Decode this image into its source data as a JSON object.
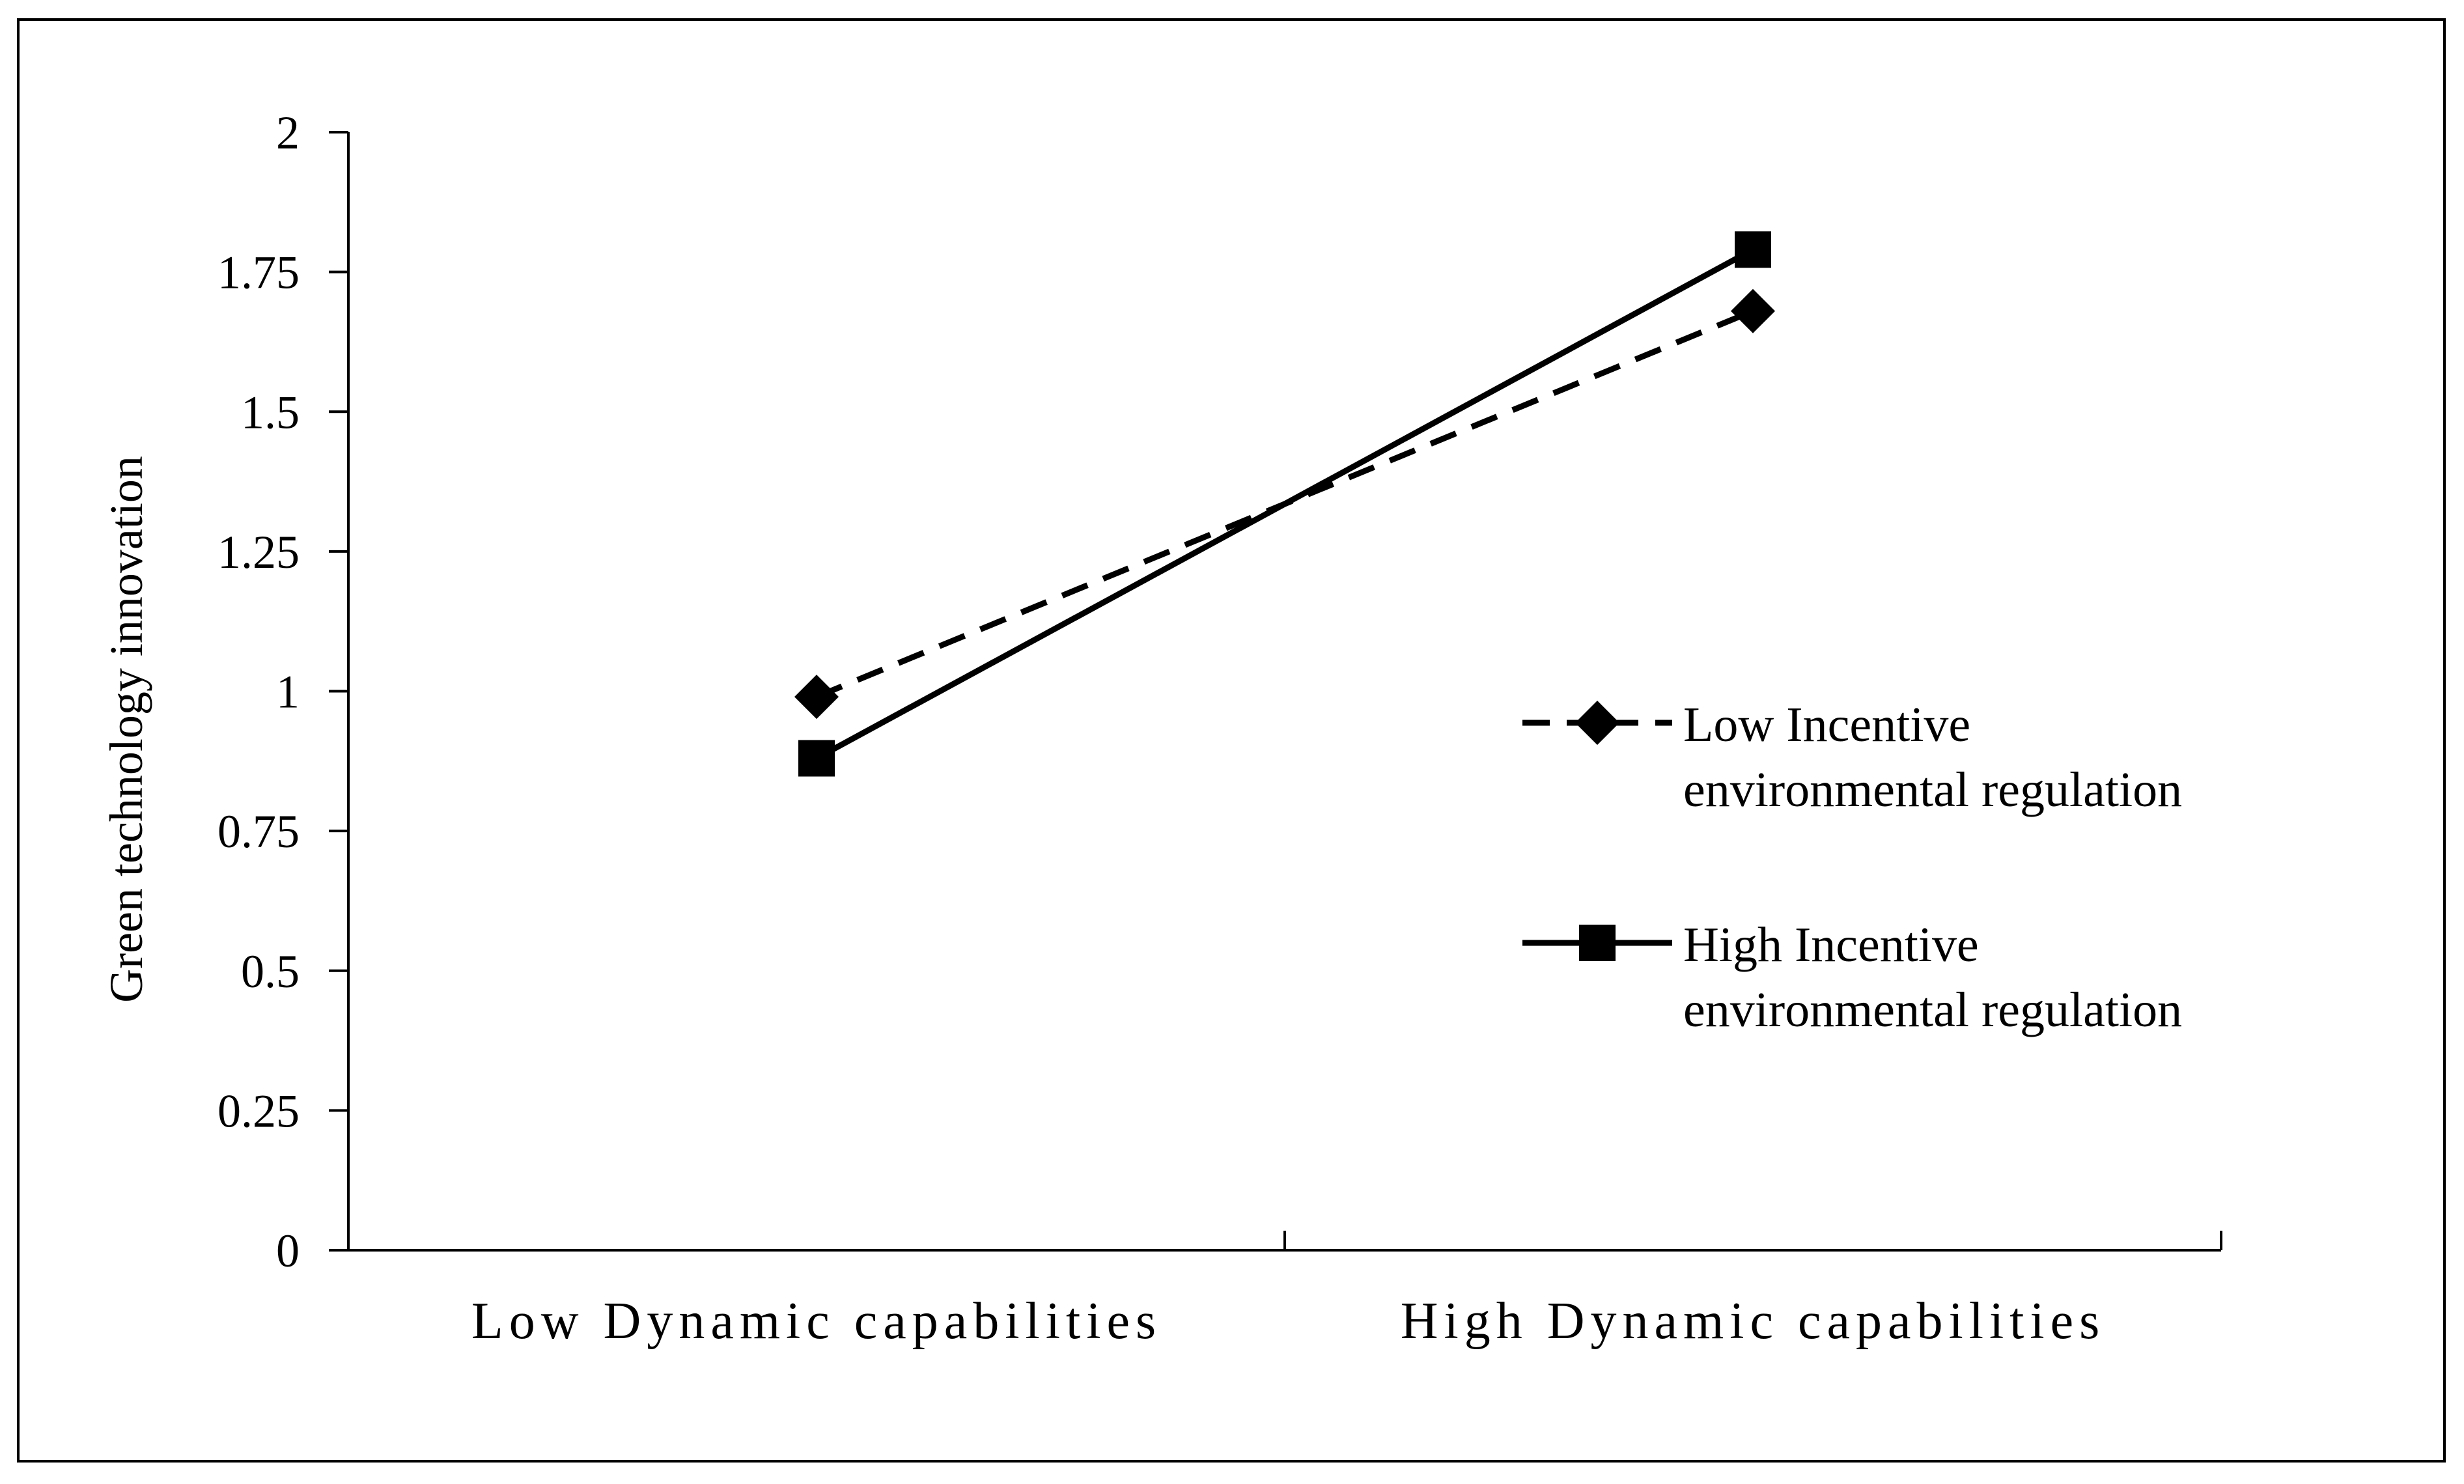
{
  "chart_data": {
    "type": "line",
    "title": "",
    "xlabel": "",
    "ylabel": "Green technology innovation",
    "categories": [
      "Low Dynamic capabilities",
      "High Dynamic capabilities"
    ],
    "ylim": [
      0,
      2
    ],
    "yticks": [
      "0",
      "0.25",
      "0.5",
      "0.75",
      "1",
      "1.25",
      "1.5",
      "1.75",
      "2"
    ],
    "ytick_values": [
      0,
      0.25,
      0.5,
      0.75,
      1,
      1.25,
      1.5,
      1.75,
      2
    ],
    "grid": false,
    "legend_position": "right",
    "series": [
      {
        "name": "Low Incentive environmental regulation",
        "legend_lines": [
          "Low Incentive",
          "environmental regulation"
        ],
        "values": [
          0.99,
          1.68
        ],
        "line_style": "dashed",
        "marker": "diamond",
        "color": "#000000"
      },
      {
        "name": "High Incentive environmental regulation",
        "legend_lines": [
          "High Incentive",
          "environmental regulation"
        ],
        "values": [
          0.88,
          1.79
        ],
        "line_style": "solid",
        "marker": "square",
        "color": "#000000"
      }
    ]
  }
}
